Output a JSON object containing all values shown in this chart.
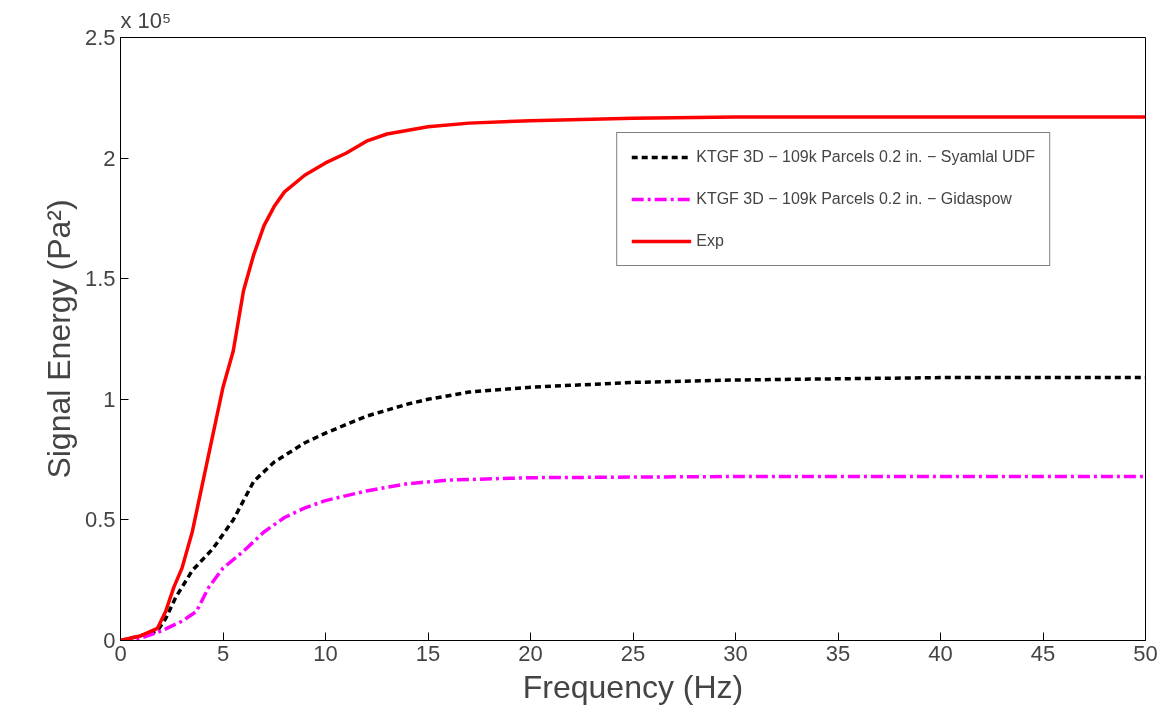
{
  "chart_data": {
    "type": "line",
    "xlabel": "Frequency (Hz)",
    "ylabel": "Signal Energy (Pa²)",
    "annotations": [
      "x 10⁵"
    ],
    "xlim": [
      0,
      50
    ],
    "xticks": [
      0,
      5,
      10,
      15,
      20,
      25,
      30,
      35,
      40,
      45,
      50
    ],
    "ylim": [
      0,
      2.5
    ],
    "yticks": [
      0,
      0.5,
      1,
      1.5,
      2,
      2.5
    ],
    "grid": false,
    "legend": "top right",
    "series": [
      {
        "name": "KTGF 3D − 109k Parcels 0.2 in. − Syamlal UDF",
        "color": "#000000",
        "line_style": "dashed",
        "x": [
          0,
          1,
          1.8,
          2.2,
          2.7,
          3.5,
          4.5,
          5.5,
          6.5,
          7.5,
          9,
          10,
          12,
          14,
          15,
          17,
          20,
          25,
          30,
          35,
          40,
          50
        ],
        "values": [
          0,
          0.02,
          0.04,
          0.09,
          0.18,
          0.29,
          0.38,
          0.5,
          0.66,
          0.74,
          0.82,
          0.86,
          0.93,
          0.98,
          1.0,
          1.03,
          1.05,
          1.07,
          1.08,
          1.085,
          1.09,
          1.09
        ]
      },
      {
        "name": "KTGF 3D − 109k Parcels 0.2 in. − Gidaspow",
        "color": "#ff00ff",
        "line_style": "dashdot",
        "x": [
          0,
          1,
          2,
          3,
          3.7,
          4.3,
          5,
          6,
          7,
          8,
          9,
          10,
          12,
          14,
          16,
          20,
          30,
          50
        ],
        "values": [
          0,
          0.01,
          0.04,
          0.08,
          0.12,
          0.22,
          0.3,
          0.37,
          0.45,
          0.51,
          0.55,
          0.58,
          0.62,
          0.65,
          0.665,
          0.675,
          0.68,
          0.68
        ]
      },
      {
        "name": "Exp",
        "color": "#ff0000",
        "line_style": "solid",
        "x": [
          0,
          1,
          1.8,
          2.2,
          2.6,
          3,
          3.5,
          4,
          4.5,
          5,
          5.5,
          6,
          6.5,
          7,
          7.5,
          8,
          9,
          10,
          11,
          12,
          13,
          15,
          17,
          20,
          25,
          30,
          40,
          50
        ],
        "values": [
          0,
          0.02,
          0.05,
          0.12,
          0.22,
          0.3,
          0.45,
          0.65,
          0.85,
          1.05,
          1.2,
          1.45,
          1.6,
          1.72,
          1.8,
          1.86,
          1.93,
          1.98,
          2.02,
          2.07,
          2.1,
          2.13,
          2.145,
          2.155,
          2.165,
          2.17,
          2.17,
          2.17
        ]
      }
    ]
  }
}
